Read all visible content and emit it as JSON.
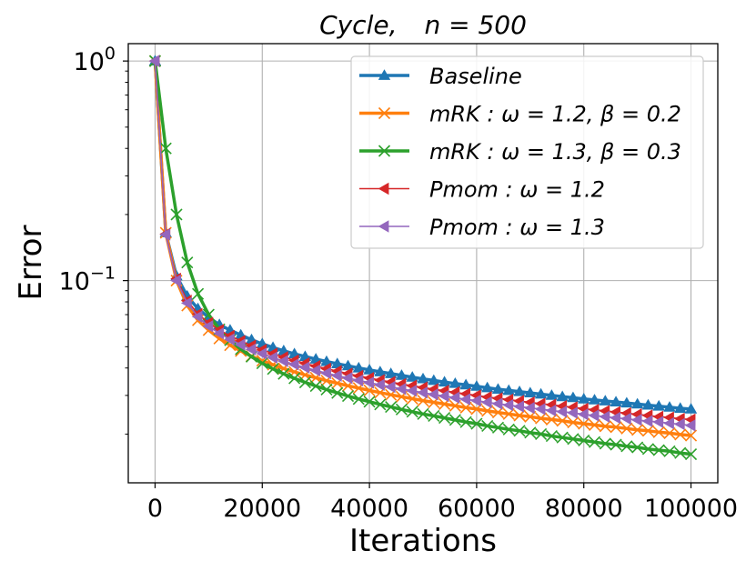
{
  "chart_data": {
    "type": "line",
    "title": "Cycle,    n = 500",
    "title_parts": {
      "graph": "Cycle,",
      "size": "n = 500"
    },
    "xlabel": "Iterations",
    "ylabel": "Error",
    "yscale": "log",
    "xlim": [
      -5000,
      105000
    ],
    "ylim": [
      0.012,
      1.2
    ],
    "grid": true,
    "legend_position": "top-right",
    "x_ticks": [
      0,
      20000,
      40000,
      60000,
      80000,
      100000
    ],
    "x_tick_labels": [
      "0",
      "20000",
      "40000",
      "60000",
      "80000",
      "100000"
    ],
    "y_ticks": [
      1,
      0.1
    ],
    "y_tick_labels": [
      {
        "base": "10",
        "exp": "0"
      },
      {
        "base": "10",
        "exp": "−1"
      }
    ],
    "x": [
      0,
      2000,
      4000,
      6000,
      8000,
      10000,
      12000,
      14000,
      16000,
      18000,
      20000,
      22000,
      24000,
      26000,
      28000,
      30000,
      32000,
      34000,
      36000,
      38000,
      40000,
      42000,
      44000,
      46000,
      48000,
      50000,
      52000,
      54000,
      56000,
      58000,
      60000,
      62000,
      64000,
      66000,
      68000,
      70000,
      72000,
      74000,
      76000,
      78000,
      80000,
      82000,
      84000,
      86000,
      88000,
      90000,
      92000,
      94000,
      96000,
      98000,
      100000
    ],
    "series": [
      {
        "name": "Baseline",
        "color": "#1f77b4",
        "marker": "triangle-up",
        "linewidth": 3.5,
        "markersize": 6,
        "values": [
          1.0,
          0.165,
          0.105,
          0.085,
          0.0745,
          0.068,
          0.063,
          0.0595,
          0.0565,
          0.0538,
          0.0515,
          0.0496,
          0.0479,
          0.0464,
          0.0451,
          0.0439,
          0.0428,
          0.0418,
          0.0409,
          0.04,
          0.0392,
          0.0384,
          0.0377,
          0.037,
          0.0363,
          0.0357,
          0.0351,
          0.0345,
          0.034,
          0.0335,
          0.033,
          0.0325,
          0.032,
          0.0316,
          0.0312,
          0.0308,
          0.0304,
          0.03,
          0.0296,
          0.0293,
          0.0289,
          0.0286,
          0.0283,
          0.028,
          0.0277,
          0.0274,
          0.0271,
          0.0268,
          0.0265,
          0.0262,
          0.026
        ]
      },
      {
        "name": "mRK: ω = 1.2, β = 0.2",
        "color": "#ff7f0e",
        "marker": "x",
        "linewidth": 3.5,
        "markersize": 6,
        "values": [
          1.0,
          0.165,
          0.1,
          0.077,
          0.066,
          0.0595,
          0.0545,
          0.0508,
          0.0478,
          0.0453,
          0.0432,
          0.0414,
          0.0398,
          0.0384,
          0.0372,
          0.0361,
          0.035,
          0.0341,
          0.0332,
          0.0324,
          0.0316,
          0.0309,
          0.0302,
          0.0296,
          0.029,
          0.0284,
          0.0279,
          0.0274,
          0.0269,
          0.0264,
          0.026,
          0.0255,
          0.0251,
          0.0247,
          0.0243,
          0.024,
          0.0236,
          0.0233,
          0.023,
          0.0226,
          0.0223,
          0.022,
          0.0217,
          0.0215,
          0.0212,
          0.0209,
          0.0207,
          0.0204,
          0.0202,
          0.0199,
          0.0197
        ]
      },
      {
        "name": "mRK: ω = 1.3, β = 0.3",
        "color": "#2ca02c",
        "marker": "x",
        "linewidth": 3.5,
        "markersize": 6,
        "values": [
          1.0,
          0.4,
          0.2,
          0.121,
          0.087,
          0.07,
          0.06,
          0.0535,
          0.0487,
          0.045,
          0.042,
          0.0396,
          0.0376,
          0.0359,
          0.0344,
          0.0331,
          0.0319,
          0.0308,
          0.0298,
          0.0289,
          0.0281,
          0.0273,
          0.0266,
          0.0259,
          0.0253,
          0.0247,
          0.0242,
          0.0237,
          0.0232,
          0.0227,
          0.0223,
          0.0218,
          0.0214,
          0.021,
          0.0207,
          0.0203,
          0.02,
          0.0196,
          0.0193,
          0.019,
          0.0187,
          0.0184,
          0.0181,
          0.0179,
          0.0176,
          0.0174,
          0.0171,
          0.0169,
          0.0167,
          0.0164,
          0.0162
        ]
      },
      {
        "name": "Pmom: ω = 1.2",
        "color": "#d62728",
        "marker": "triangle-left",
        "linewidth": 1.6,
        "markersize": 6,
        "values": [
          1.0,
          0.163,
          0.102,
          0.081,
          0.0705,
          0.0642,
          0.0596,
          0.056,
          0.0531,
          0.0506,
          0.0484,
          0.0465,
          0.0448,
          0.0433,
          0.042,
          0.0408,
          0.0397,
          0.0387,
          0.0377,
          0.0368,
          0.036,
          0.0352,
          0.0345,
          0.0338,
          0.0332,
          0.0326,
          0.032,
          0.0315,
          0.031,
          0.0305,
          0.03,
          0.0295,
          0.0291,
          0.0287,
          0.0283,
          0.0279,
          0.0275,
          0.0272,
          0.0268,
          0.0265,
          0.0261,
          0.0258,
          0.0255,
          0.0252,
          0.0249,
          0.0246,
          0.0243,
          0.024,
          0.0238,
          0.0235,
          0.0233
        ]
      },
      {
        "name": "Pmom: ω = 1.3",
        "color": "#9467bd",
        "marker": "triangle-left",
        "linewidth": 1.6,
        "markersize": 6,
        "values": [
          1.0,
          0.162,
          0.1,
          0.079,
          0.0685,
          0.062,
          0.0575,
          0.054,
          0.0511,
          0.0486,
          0.0465,
          0.0446,
          0.043,
          0.0415,
          0.0402,
          0.039,
          0.0379,
          0.0369,
          0.036,
          0.0351,
          0.0343,
          0.0335,
          0.0328,
          0.0321,
          0.0315,
          0.0309,
          0.0303,
          0.0298,
          0.0293,
          0.0288,
          0.0284,
          0.0279,
          0.0275,
          0.0271,
          0.0267,
          0.0263,
          0.026,
          0.0256,
          0.0253,
          0.025,
          0.0246,
          0.0243,
          0.024,
          0.0237,
          0.0235,
          0.0232,
          0.0229,
          0.0227,
          0.0224,
          0.0222,
          0.0219
        ]
      }
    ],
    "legend": [
      {
        "prefix": "Baseline",
        "rest": ""
      },
      {
        "prefix": "mRK",
        "rest": " : ω = 1.2, β = 0.2"
      },
      {
        "prefix": "mRK",
        "rest": " : ω = 1.3, β = 0.3"
      },
      {
        "prefix": "Pmom",
        "rest": " : ω = 1.2"
      },
      {
        "prefix": "Pmom",
        "rest": " : ω = 1.3"
      }
    ]
  }
}
